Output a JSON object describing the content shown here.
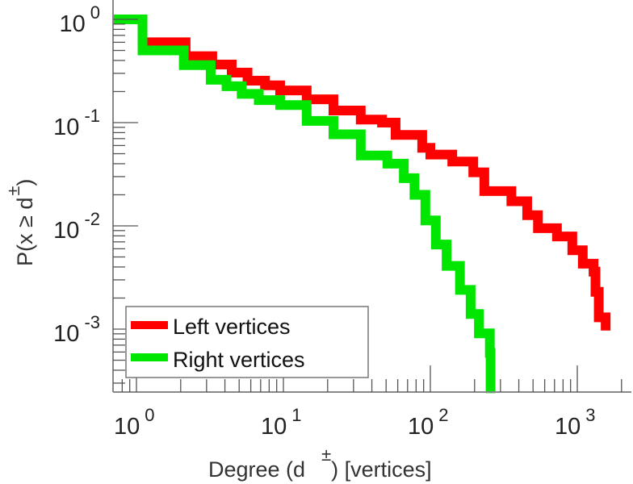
{
  "chart_data": {
    "type": "line",
    "title": "",
    "xlabel": {
      "main": "Degree (d",
      "sup": "±",
      "tail": ") [vertices]"
    },
    "ylabel": {
      "main": "P(x ≥ d",
      "sup": "±",
      "tail": ")"
    },
    "xscale": "log",
    "yscale": "log",
    "xlim": [
      0.69,
      2340
    ],
    "ylim": [
      0.00025,
      1.54
    ],
    "grid": false,
    "legend_position": "bottom-left",
    "xticks": [
      {
        "value": 1,
        "base": "10",
        "exp": "0"
      },
      {
        "value": 10,
        "base": "10",
        "exp": "1"
      },
      {
        "value": 100,
        "base": "10",
        "exp": "2"
      },
      {
        "value": 1000,
        "base": "10",
        "exp": "3"
      }
    ],
    "yticks": [
      {
        "value": 1,
        "base": "10",
        "exp": "0"
      },
      {
        "value": 0.1,
        "base": "10",
        "exp": "-1"
      },
      {
        "value": 0.01,
        "base": "10",
        "exp": "-2"
      },
      {
        "value": 0.001,
        "base": "10",
        "exp": "-3"
      }
    ],
    "series": [
      {
        "name": "Left vertices",
        "color": "#ff0000",
        "step": "post",
        "points": [
          [
            0.69,
            1.0
          ],
          [
            1.1,
            0.6
          ],
          [
            2.16,
            0.44
          ],
          [
            3.28,
            0.365
          ],
          [
            4.45,
            0.305
          ],
          [
            5.7,
            0.255
          ],
          [
            7.5,
            0.23
          ],
          [
            9.5,
            0.205
          ],
          [
            14.4,
            0.168
          ],
          [
            21.9,
            0.131
          ],
          [
            33.6,
            0.107
          ],
          [
            46.9,
            0.1
          ],
          [
            58,
            0.076
          ],
          [
            88,
            0.057
          ],
          [
            100,
            0.049
          ],
          [
            141,
            0.042
          ],
          [
            196,
            0.033
          ],
          [
            233,
            0.0217
          ],
          [
            356,
            0.0173
          ],
          [
            456,
            0.0127
          ],
          [
            540,
            0.0095
          ],
          [
            727,
            0.0079
          ],
          [
            925,
            0.0058
          ],
          [
            1090,
            0.0043
          ],
          [
            1290,
            0.0036
          ],
          [
            1330,
            0.0023
          ],
          [
            1400,
            0.0013
          ],
          [
            1560,
            0.00097
          ],
          [
            1560,
            0.00097
          ]
        ]
      },
      {
        "name": "Right vertices",
        "color": "#00e600",
        "step": "post",
        "points": [
          [
            0.69,
            1.0
          ],
          [
            1.1,
            0.5
          ],
          [
            2.1,
            0.36
          ],
          [
            3.2,
            0.26
          ],
          [
            4.1,
            0.225
          ],
          [
            5.2,
            0.19
          ],
          [
            6.8,
            0.165
          ],
          [
            9.5,
            0.148
          ],
          [
            14.4,
            0.104
          ],
          [
            21.9,
            0.077
          ],
          [
            33.6,
            0.048
          ],
          [
            51,
            0.04
          ],
          [
            66,
            0.029
          ],
          [
            78,
            0.02
          ],
          [
            92.5,
            0.0113
          ],
          [
            109,
            0.0066
          ],
          [
            129,
            0.0041
          ],
          [
            159,
            0.0024
          ],
          [
            188,
            0.0014
          ],
          [
            214,
            0.00091
          ],
          [
            254,
            0.00059
          ],
          [
            257,
            0.00024
          ],
          [
            257,
            0.00024
          ]
        ]
      }
    ]
  }
}
